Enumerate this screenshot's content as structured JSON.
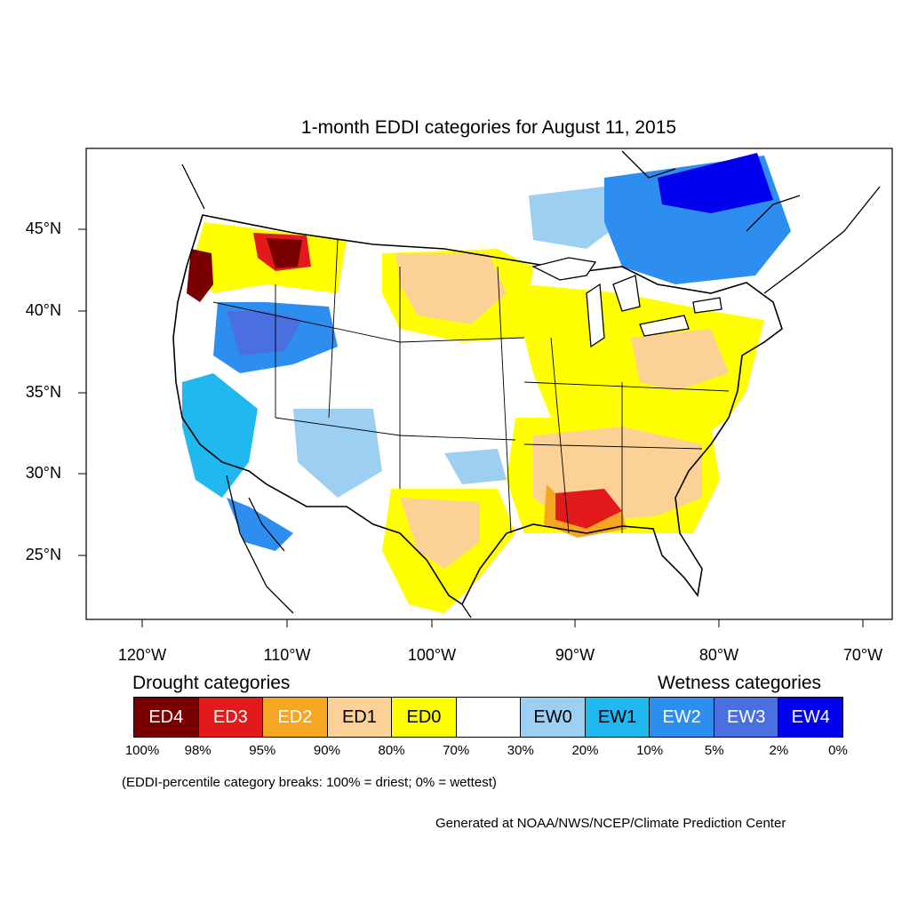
{
  "title": "1-month EDDI categories for August 11, 2015",
  "lat_labels": [
    "45°N",
    "40°N",
    "35°N",
    "30°N",
    "25°N"
  ],
  "lon_labels": [
    "120°W",
    "110°W",
    "100°W",
    "90°W",
    "80°W",
    "70°W"
  ],
  "drought_heading": "Drought categories",
  "wetness_heading": "Wetness categories",
  "categories": [
    {
      "label": "ED4",
      "color": "#7a0000",
      "text_color": "#ffffff"
    },
    {
      "label": "ED3",
      "color": "#e31a1c",
      "text_color": "#ffffff"
    },
    {
      "label": "ED2",
      "color": "#f5a623",
      "text_color": "#ffffff"
    },
    {
      "label": "ED1",
      "color": "#fcd196",
      "text_color": "#000000"
    },
    {
      "label": "ED0",
      "color": "#ffff00",
      "text_color": "#000000"
    },
    {
      "label": "",
      "color": "#ffffff",
      "text_color": "#000000"
    },
    {
      "label": "EW0",
      "color": "#9ccff2",
      "text_color": "#000000"
    },
    {
      "label": "EW1",
      "color": "#1fb8ef",
      "text_color": "#000000"
    },
    {
      "label": "EW2",
      "color": "#2e8ef0",
      "text_color": "#ffffff"
    },
    {
      "label": "EW3",
      "color": "#4a6fe0",
      "text_color": "#ffffff"
    },
    {
      "label": "EW4",
      "color": "#0000ee",
      "text_color": "#ffffff"
    }
  ],
  "percentiles": [
    "100%",
    "98%",
    "95%",
    "90%",
    "80%",
    "70%",
    "30%",
    "20%",
    "10%",
    "5%",
    "2%",
    "0%"
  ],
  "note": "(EDDI-percentile category breaks: 100% = driest; 0% = wettest)",
  "credit": "Generated at NOAA/NWS/NCEP/Climate Prediction Center"
}
